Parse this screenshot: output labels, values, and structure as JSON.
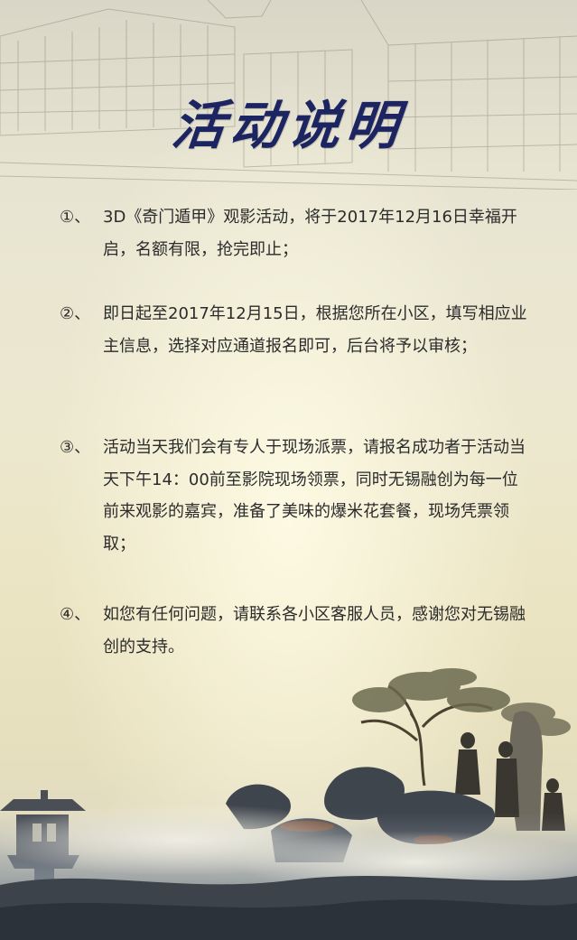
{
  "title": "活动说明",
  "items": [
    {
      "num": "①、",
      "text": "3D《奇门遁甲》观影活动，将于2017年12月16日幸福开启，名额有限，抢完即止；"
    },
    {
      "num": "②、",
      "text": "即日起至2017年12月15日，根据您所在小区，填写相应业主信息，选择对应通道报名即可，后台将予以审核；"
    },
    {
      "num": "③、",
      "text": "活动当天我们会有专人于现场派票，请报名成功者于活动当天下午14：00前至影院现场领票，同时无锡融创为每一位前来观影的嘉宾，准备了美味的爆米花套餐，现场凭票领取；"
    },
    {
      "num": "④、",
      "text": "如您有任何问题，请联系各小区客服人员，感谢您对无锡融创的支持。"
    }
  ],
  "colors": {
    "title": "#1c2561",
    "body_text": "#2b2b2b",
    "background": "#ece8cf"
  },
  "decor": {
    "top_sketch": "building-sketch-icon",
    "bottom_scene": "ink-landscape-icon"
  }
}
